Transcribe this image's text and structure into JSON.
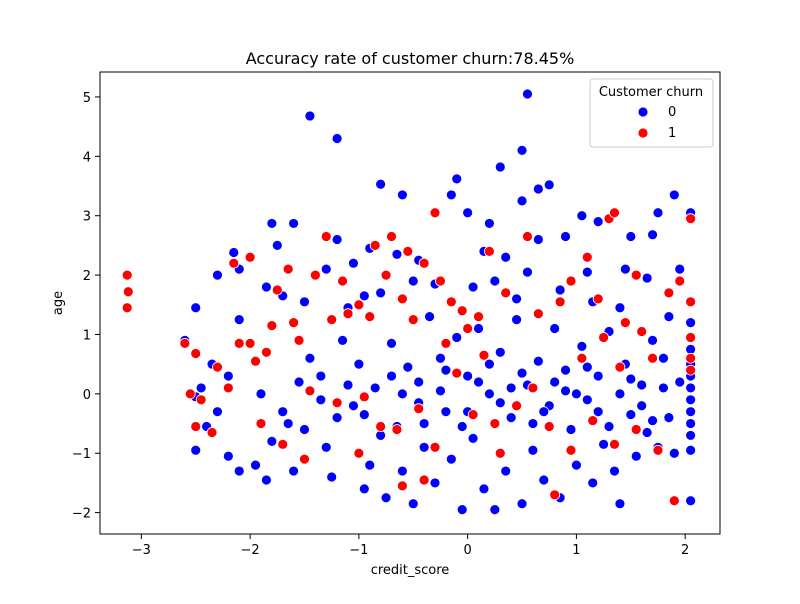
{
  "colors": {
    "class_0": "#0000ff",
    "class_1": "#ff0000",
    "marker_edge": "#ffffff",
    "axes": "#000000",
    "background": "#ffffff",
    "legend_border": "#cccccc"
  },
  "chart_data": {
    "type": "scatter",
    "title": "Accuracy rate of customer churn:78.45%",
    "xlabel": "credit_score",
    "ylabel": "age",
    "xlim": [
      -3.38,
      2.32
    ],
    "ylim": [
      -2.36,
      5.42
    ],
    "xticks": [
      -3,
      -2,
      -1,
      0,
      1,
      2
    ],
    "yticks": [
      -2,
      -1,
      0,
      1,
      2,
      3,
      4,
      5
    ],
    "xtick_labels": [
      "−3",
      "−2",
      "−1",
      "0",
      "1",
      "2"
    ],
    "ytick_labels": [
      "−2",
      "−1",
      "0",
      "1",
      "2",
      "3",
      "4",
      "5"
    ],
    "grid": false,
    "legend": {
      "title": "Customer churn",
      "placement": "top-right",
      "entries": [
        "0",
        "1"
      ]
    },
    "series": [
      {
        "name": "0",
        "color": "#0000ff",
        "points": [
          [
            0.55,
            5.05
          ],
          [
            -1.45,
            4.68
          ],
          [
            -1.2,
            4.3
          ],
          [
            0.5,
            4.1
          ],
          [
            -0.1,
            3.62
          ],
          [
            0.3,
            3.82
          ],
          [
            0.75,
            3.52
          ],
          [
            0.65,
            3.45
          ],
          [
            1.9,
            3.35
          ],
          [
            -0.8,
            3.53
          ],
          [
            -0.6,
            3.35
          ],
          [
            0.0,
            3.05
          ],
          [
            -0.15,
            3.35
          ],
          [
            -1.8,
            2.87
          ],
          [
            -1.6,
            2.87
          ],
          [
            0.2,
            2.87
          ],
          [
            0.5,
            3.25
          ],
          [
            1.05,
            3.0
          ],
          [
            2.05,
            3.05
          ],
          [
            1.75,
            3.05
          ],
          [
            -2.3,
            2.0
          ],
          [
            -2.15,
            2.38
          ],
          [
            -2.1,
            2.1
          ],
          [
            -1.75,
            2.5
          ],
          [
            -1.2,
            2.6
          ],
          [
            -0.9,
            2.45
          ],
          [
            -0.65,
            2.35
          ],
          [
            0.15,
            2.4
          ],
          [
            0.35,
            2.3
          ],
          [
            0.65,
            2.6
          ],
          [
            0.9,
            2.65
          ],
          [
            1.2,
            2.9
          ],
          [
            1.5,
            2.65
          ],
          [
            1.7,
            2.68
          ],
          [
            1.95,
            2.1
          ],
          [
            -1.3,
            2.1
          ],
          [
            -1.05,
            2.2
          ],
          [
            -0.45,
            2.25
          ],
          [
            0.55,
            2.05
          ],
          [
            1.1,
            2.05
          ],
          [
            1.45,
            2.1
          ],
          [
            1.65,
            1.95
          ],
          [
            -2.5,
            1.45
          ],
          [
            -2.1,
            1.25
          ],
          [
            -1.85,
            1.8
          ],
          [
            -1.7,
            1.65
          ],
          [
            -1.5,
            1.55
          ],
          [
            -1.1,
            1.45
          ],
          [
            -0.95,
            1.65
          ],
          [
            -0.8,
            1.7
          ],
          [
            -0.5,
            1.9
          ],
          [
            -0.3,
            1.85
          ],
          [
            0.05,
            1.8
          ],
          [
            0.25,
            1.9
          ],
          [
            0.45,
            1.6
          ],
          [
            0.85,
            1.75
          ],
          [
            1.15,
            1.55
          ],
          [
            1.4,
            1.45
          ],
          [
            1.85,
            1.3
          ],
          [
            2.05,
            1.2
          ],
          [
            -2.6,
            0.9
          ],
          [
            -2.35,
            0.5
          ],
          [
            -2.2,
            0.3
          ],
          [
            -2.45,
            0.1
          ],
          [
            -2.5,
            -0.05
          ],
          [
            -2.3,
            -0.3
          ],
          [
            -2.4,
            -0.55
          ],
          [
            -2.5,
            -0.95
          ],
          [
            -2.2,
            -1.05
          ],
          [
            -2.1,
            -1.3
          ],
          [
            -1.95,
            -1.2
          ],
          [
            -1.85,
            -1.45
          ],
          [
            -1.8,
            -0.8
          ],
          [
            -1.65,
            -0.5
          ],
          [
            -1.6,
            -1.3
          ],
          [
            -1.55,
            0.2
          ],
          [
            -1.45,
            0.6
          ],
          [
            -1.35,
            0.3
          ],
          [
            -1.3,
            -0.9
          ],
          [
            -1.25,
            -1.4
          ],
          [
            -1.15,
            0.9
          ],
          [
            -1.05,
            -0.2
          ],
          [
            -0.95,
            -1.6
          ],
          [
            -0.9,
            -1.2
          ],
          [
            -0.85,
            0.1
          ],
          [
            -0.75,
            -1.75
          ],
          [
            -0.7,
            0.85
          ],
          [
            -0.65,
            -0.55
          ],
          [
            -0.6,
            -1.3
          ],
          [
            -0.55,
            0.45
          ],
          [
            -0.5,
            -1.85
          ],
          [
            -0.45,
            0.2
          ],
          [
            -0.4,
            -0.9
          ],
          [
            -0.35,
            1.3
          ],
          [
            -0.3,
            -1.5
          ],
          [
            -0.25,
            0.6
          ],
          [
            -0.2,
            -0.3
          ],
          [
            -0.15,
            -1.1
          ],
          [
            -0.1,
            0.95
          ],
          [
            -0.05,
            -1.95
          ],
          [
            0.0,
            0.3
          ],
          [
            0.05,
            -0.75
          ],
          [
            0.1,
            1.1
          ],
          [
            0.15,
            -1.6
          ],
          [
            0.2,
            0.0
          ],
          [
            0.25,
            -1.95
          ],
          [
            0.3,
            0.7
          ],
          [
            0.35,
            -1.3
          ],
          [
            0.4,
            -0.4
          ],
          [
            0.45,
            1.25
          ],
          [
            0.5,
            -1.85
          ],
          [
            0.55,
            0.15
          ],
          [
            0.6,
            -0.95
          ],
          [
            0.65,
            0.55
          ],
          [
            0.7,
            -1.45
          ],
          [
            0.75,
            -0.2
          ],
          [
            0.8,
            1.1
          ],
          [
            0.85,
            -1.75
          ],
          [
            0.9,
            0.4
          ],
          [
            0.95,
            -0.6
          ],
          [
            1.0,
            -1.2
          ],
          [
            1.05,
            0.8
          ],
          [
            1.1,
            -0.1
          ],
          [
            1.15,
            -1.5
          ],
          [
            1.2,
            0.3
          ],
          [
            1.25,
            -0.85
          ],
          [
            1.3,
            1.05
          ],
          [
            1.35,
            -1.3
          ],
          [
            1.4,
            -1.85
          ],
          [
            1.45,
            0.5
          ],
          [
            1.5,
            -0.35
          ],
          [
            1.55,
            -1.05
          ],
          [
            1.6,
            0.15
          ],
          [
            1.65,
            -0.65
          ],
          [
            1.7,
            0.9
          ],
          [
            1.75,
            -0.9
          ],
          [
            1.8,
            0.6
          ],
          [
            1.85,
            -0.4
          ],
          [
            1.9,
            -1.0
          ],
          [
            1.95,
            0.2
          ],
          [
            2.05,
            -0.1
          ],
          [
            2.05,
            -0.3
          ],
          [
            2.05,
            -0.5
          ],
          [
            2.05,
            -0.7
          ],
          [
            2.05,
            -0.95
          ],
          [
            2.05,
            0.1
          ],
          [
            2.05,
            0.3
          ],
          [
            2.05,
            0.5
          ],
          [
            2.05,
            0.75
          ],
          [
            2.05,
            -1.8
          ],
          [
            -1.9,
            0.0
          ],
          [
            -1.7,
            -0.3
          ],
          [
            -1.5,
            -0.6
          ],
          [
            -1.2,
            -0.4
          ],
          [
            -1.0,
            0.5
          ],
          [
            -0.8,
            -0.7
          ],
          [
            -0.6,
            0.0
          ],
          [
            -0.4,
            -0.5
          ],
          [
            -0.2,
            0.4
          ],
          [
            0.0,
            -0.3
          ],
          [
            0.2,
            0.5
          ],
          [
            0.4,
            0.1
          ],
          [
            0.6,
            -0.5
          ],
          [
            0.8,
            0.2
          ],
          [
            1.0,
            0.0
          ],
          [
            1.2,
            -0.3
          ],
          [
            1.4,
            0.0
          ],
          [
            1.6,
            -0.2
          ],
          [
            1.8,
            0.1
          ],
          [
            -1.35,
            -0.1
          ],
          [
            -1.1,
            0.15
          ],
          [
            -0.95,
            -0.35
          ],
          [
            -0.7,
            0.3
          ],
          [
            -0.45,
            -0.15
          ],
          [
            -0.25,
            0.05
          ],
          [
            -0.05,
            -0.55
          ],
          [
            0.1,
            0.2
          ],
          [
            0.3,
            -0.15
          ],
          [
            0.5,
            0.35
          ],
          [
            0.7,
            -0.3
          ],
          [
            0.9,
            0.05
          ],
          [
            1.1,
            0.45
          ],
          [
            1.3,
            -0.55
          ],
          [
            1.5,
            0.25
          ],
          [
            1.7,
            -0.45
          ]
        ]
      },
      {
        "name": "1",
        "color": "#ff0000",
        "points": [
          [
            -3.13,
            2.0
          ],
          [
            -3.12,
            1.72
          ],
          [
            -3.13,
            1.45
          ],
          [
            -2.6,
            0.85
          ],
          [
            -2.5,
            0.68
          ],
          [
            -2.55,
            0.0
          ],
          [
            -2.45,
            -0.1
          ],
          [
            -2.5,
            -0.55
          ],
          [
            -2.3,
            0.45
          ],
          [
            -2.15,
            2.2
          ],
          [
            -2.0,
            2.3
          ],
          [
            -2.1,
            0.85
          ],
          [
            -2.0,
            0.85
          ],
          [
            -1.95,
            0.55
          ],
          [
            -1.85,
            0.7
          ],
          [
            -1.8,
            1.15
          ],
          [
            -1.75,
            1.75
          ],
          [
            -1.65,
            2.1
          ],
          [
            -1.6,
            1.2
          ],
          [
            -1.55,
            0.9
          ],
          [
            -1.4,
            2.0
          ],
          [
            -1.3,
            2.65
          ],
          [
            -1.25,
            1.25
          ],
          [
            -1.15,
            1.9
          ],
          [
            -1.1,
            1.35
          ],
          [
            -1.0,
            1.5
          ],
          [
            -0.9,
            1.3
          ],
          [
            -0.85,
            2.5
          ],
          [
            -0.75,
            2.0
          ],
          [
            -0.7,
            2.65
          ],
          [
            -0.6,
            1.6
          ],
          [
            -0.55,
            2.4
          ],
          [
            -0.5,
            1.25
          ],
          [
            -0.4,
            2.2
          ],
          [
            -0.3,
            3.05
          ],
          [
            -0.25,
            1.9
          ],
          [
            -0.15,
            1.55
          ],
          [
            -0.05,
            1.4
          ],
          [
            0.0,
            1.1
          ],
          [
            0.1,
            1.3
          ],
          [
            0.2,
            2.4
          ],
          [
            0.35,
            1.7
          ],
          [
            0.55,
            2.65
          ],
          [
            0.65,
            1.35
          ],
          [
            0.85,
            1.55
          ],
          [
            0.95,
            1.9
          ],
          [
            1.1,
            2.3
          ],
          [
            1.2,
            1.6
          ],
          [
            1.3,
            2.95
          ],
          [
            1.35,
            3.05
          ],
          [
            1.45,
            1.2
          ],
          [
            1.55,
            2.0
          ],
          [
            1.6,
            1.05
          ],
          [
            1.7,
            0.6
          ],
          [
            1.85,
            1.7
          ],
          [
            1.95,
            1.9
          ],
          [
            2.05,
            2.95
          ],
          [
            2.05,
            1.55
          ],
          [
            2.05,
            0.95
          ],
          [
            2.05,
            0.6
          ],
          [
            2.05,
            0.4
          ],
          [
            -2.35,
            -0.65
          ],
          [
            -2.2,
            0.1
          ],
          [
            -1.9,
            -0.5
          ],
          [
            -1.7,
            -0.85
          ],
          [
            -1.45,
            0.05
          ],
          [
            -1.2,
            -0.15
          ],
          [
            -0.95,
            -0.05
          ],
          [
            -0.8,
            -0.55
          ],
          [
            -0.65,
            -0.6
          ],
          [
            -0.45,
            -0.25
          ],
          [
            -0.3,
            -0.9
          ],
          [
            -0.1,
            0.35
          ],
          [
            0.05,
            -0.35
          ],
          [
            0.25,
            -0.5
          ],
          [
            0.45,
            -0.2
          ],
          [
            0.6,
            0.1
          ],
          [
            0.75,
            -0.55
          ],
          [
            0.95,
            -0.95
          ],
          [
            1.15,
            -0.45
          ],
          [
            1.35,
            -0.85
          ],
          [
            1.55,
            -0.6
          ],
          [
            1.75,
            -0.95
          ],
          [
            1.9,
            -1.8
          ],
          [
            0.8,
            -1.7
          ],
          [
            -0.6,
            -1.55
          ],
          [
            -0.4,
            -1.45
          ],
          [
            0.3,
            -1.0
          ],
          [
            -1.0,
            -1.0
          ],
          [
            1.4,
            0.45
          ],
          [
            1.25,
            0.95
          ],
          [
            1.05,
            0.6
          ],
          [
            -1.5,
            -1.1
          ],
          [
            0.15,
            0.65
          ],
          [
            -0.2,
            0.85
          ]
        ]
      }
    ]
  }
}
